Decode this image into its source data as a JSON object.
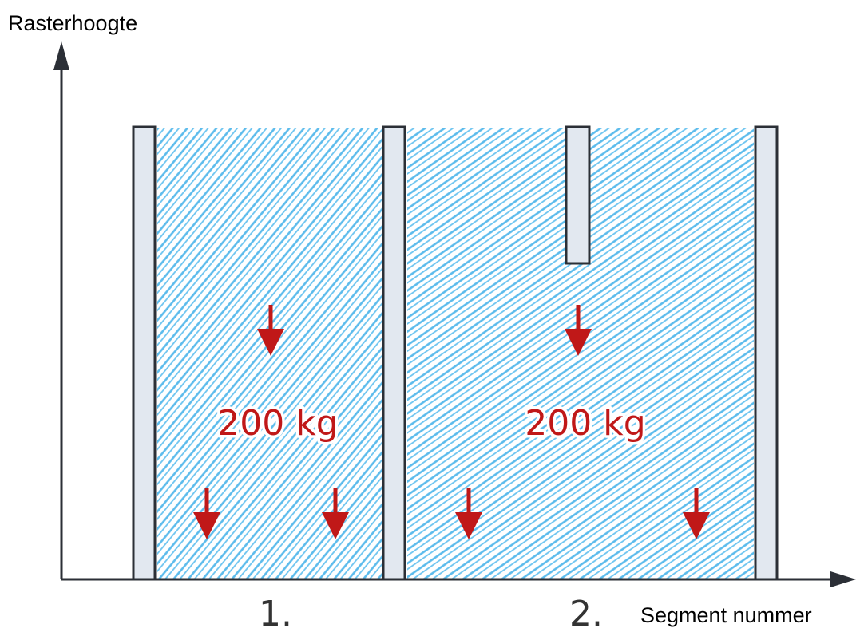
{
  "axes": {
    "y_label": "Rasterhoogte",
    "x_label": "Segment nummer"
  },
  "segments": [
    {
      "number": "1.",
      "load": "200 kg",
      "fill_color": "#5bbbec"
    },
    {
      "number": "2.",
      "load": "200 kg",
      "fill_color": "#5bbbec"
    }
  ],
  "colors": {
    "axis": "#2b2f36",
    "post_fill": "#e2e8f0",
    "load_arrow": "#c01818"
  }
}
